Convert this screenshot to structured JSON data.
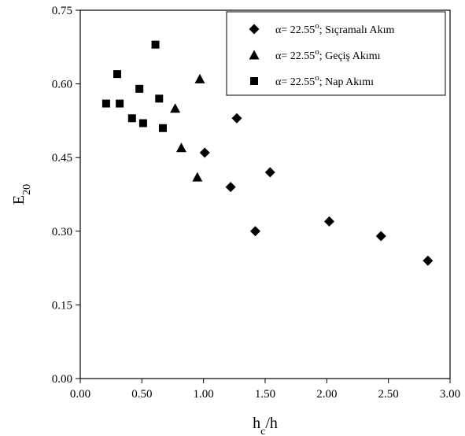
{
  "chart_data": {
    "type": "scatter",
    "title": "",
    "xlabel": {
      "main": "h",
      "sub": "c",
      "rest": "/h"
    },
    "ylabel": {
      "main": "E",
      "sub": "20"
    },
    "xlim": [
      0,
      3
    ],
    "ylim": [
      0,
      0.75
    ],
    "xticks": [
      "0.00",
      "0.50",
      "1.00",
      "1.50",
      "2.00",
      "2.50",
      "3.00"
    ],
    "yticks": [
      "0.00",
      "0.15",
      "0.30",
      "0.45",
      "0.60",
      "0.75"
    ],
    "grid": false,
    "legend_placement": "top-right",
    "series": [
      {
        "name_parts": {
          "pre": "α= 22.55",
          "sup": "o",
          "post": "; Sıçramalı Akım"
        },
        "marker": "diamond",
        "color": "#000000",
        "points": [
          {
            "x": 1.01,
            "y": 0.46
          },
          {
            "x": 1.22,
            "y": 0.39
          },
          {
            "x": 1.27,
            "y": 0.53
          },
          {
            "x": 1.42,
            "y": 0.3
          },
          {
            "x": 1.54,
            "y": 0.42
          },
          {
            "x": 2.02,
            "y": 0.32
          },
          {
            "x": 2.44,
            "y": 0.29
          },
          {
            "x": 2.82,
            "y": 0.24
          }
        ]
      },
      {
        "name_parts": {
          "pre": "α= 22.55",
          "sup": "o",
          "post": "; Geçiş Akımı"
        },
        "marker": "triangle",
        "color": "#000000",
        "points": [
          {
            "x": 0.77,
            "y": 0.55
          },
          {
            "x": 0.82,
            "y": 0.47
          },
          {
            "x": 0.95,
            "y": 0.41
          },
          {
            "x": 0.97,
            "y": 0.61
          }
        ]
      },
      {
        "name_parts": {
          "pre": "α= 22.55",
          "sup": "o",
          "post": "; Nap Akımı"
        },
        "marker": "square",
        "color": "#000000",
        "points": [
          {
            "x": 0.21,
            "y": 0.56
          },
          {
            "x": 0.3,
            "y": 0.62
          },
          {
            "x": 0.32,
            "y": 0.56
          },
          {
            "x": 0.42,
            "y": 0.53
          },
          {
            "x": 0.48,
            "y": 0.59
          },
          {
            "x": 0.51,
            "y": 0.52
          },
          {
            "x": 0.61,
            "y": 0.68
          },
          {
            "x": 0.64,
            "y": 0.57
          },
          {
            "x": 0.67,
            "y": 0.51
          }
        ]
      }
    ]
  }
}
